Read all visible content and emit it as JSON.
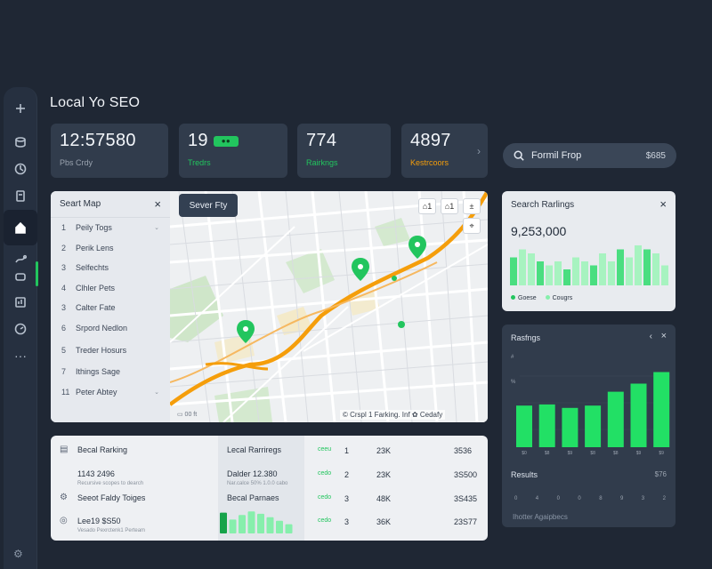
{
  "app": {
    "title": "Local Yo SEO"
  },
  "sidebar": {
    "items": [
      {
        "icon": "plus-icon"
      },
      {
        "icon": "database-icon"
      },
      {
        "icon": "compass-icon"
      },
      {
        "icon": "clipboard-icon"
      },
      {
        "icon": "home-icon",
        "active": true
      },
      {
        "icon": "route-icon"
      },
      {
        "icon": "chat-icon"
      },
      {
        "icon": "bar-chart-icon"
      },
      {
        "icon": "gauge-icon"
      },
      {
        "icon": "more-icon",
        "glyph": "···"
      }
    ]
  },
  "stats": [
    {
      "value": "12:57580",
      "label": "Pbs Crdy",
      "label_color": "#9aa3af"
    },
    {
      "value": "19",
      "badge": "●●",
      "label": "Tredrs",
      "label_color": "#22c55e"
    },
    {
      "value": "774",
      "label": "Rairkngs",
      "label_color": "#22c55e"
    },
    {
      "value": "4897",
      "label": "Kestrcoors",
      "label_color": "#f59e0b"
    }
  ],
  "search": {
    "label": "Formil Frop",
    "value": "$685"
  },
  "map_panel": {
    "title": "Seart Map",
    "items": [
      {
        "n": "1",
        "label": "Peily Togs"
      },
      {
        "n": "2",
        "label": "Perik Lens"
      },
      {
        "n": "3",
        "label": "Selfechts"
      },
      {
        "n": "4",
        "label": "Clhler Pets"
      },
      {
        "n": "3",
        "label": "Calter Fate"
      },
      {
        "n": "6",
        "label": "Srpord Nedlon"
      },
      {
        "n": "5",
        "label": "Treder Hosurs"
      },
      {
        "n": "7",
        "label": "Ithings Sage"
      },
      {
        "n": "11",
        "label": "Peter Abtey"
      }
    ],
    "server_button": "Sever Fty",
    "controls": [
      "⌂1",
      "⌂1",
      "±",
      "⌖"
    ],
    "attribution": "© Crspl 1 Farking. Inf ✿ Cedafy",
    "scale": "▭ 00 ft"
  },
  "table": {
    "rows": [
      {
        "icon": "doc-icon",
        "title": "Becal Rarking",
        "sub": "",
        "mid": "Lecal Rarriregs",
        "mid_sub": "",
        "tag": "ceeu",
        "num": "1",
        "a": "23K",
        "b": "3536"
      },
      {
        "icon": "",
        "title": "1143 2496",
        "sub": "Recursive scopes to dearch",
        "mid": "Dalder 12.380",
        "mid_sub": "Nar.calce 50% 1.0.0 cabo",
        "tag": "cedo",
        "num": "2",
        "a": "23K",
        "b": "3S500"
      },
      {
        "icon": "gear-icon",
        "title": "Seeot Faldy Toiges",
        "sub": "",
        "mid": "Becal Parnaes",
        "mid_sub": "",
        "tag": "cedo",
        "num": "3",
        "a": "48K",
        "b": "3S435"
      },
      {
        "icon": "pin-icon",
        "title": "Lee19 $S50",
        "sub": "Vesado Pexrctenk1 Perteam",
        "mid": "",
        "mid_sub": "",
        "tag": "cedo",
        "num": "3",
        "a": "36K",
        "b": "23S77"
      }
    ],
    "mini_bars": [
      0.9,
      0.6,
      0.8,
      0.95,
      0.85,
      0.7,
      0.55,
      0.4
    ]
  },
  "search_rankings": {
    "title": "Search Rarlings",
    "total": "9,253,000",
    "legend": [
      {
        "label": "Goese",
        "color": "#22c55e"
      },
      {
        "label": "Cougrs",
        "color": "#86efac"
      }
    ],
    "chart_data": {
      "type": "bar",
      "values": [
        0.35,
        0.45,
        0.4,
        0.3,
        0.25,
        0.3,
        0.2,
        0.35,
        0.3,
        0.25,
        0.4,
        0.3,
        0.45,
        0.35,
        0.5,
        0.45,
        0.4,
        0.25
      ]
    }
  },
  "rankings": {
    "title": "Rasfngs",
    "ytick_labels": [
      "#",
      "%"
    ],
    "chart_data": {
      "type": "bar",
      "categories": [
        "$0",
        "$8",
        "$9",
        "$8",
        "$8",
        "$9",
        "$9",
        "$9"
      ],
      "values": [
        36,
        37,
        34,
        36,
        48,
        55,
        65,
        78
      ]
    },
    "results_title": "Results",
    "results_value": "$76",
    "dots": [
      "0",
      "4",
      "0",
      "0",
      "8",
      "9",
      "3",
      "2"
    ],
    "footer": "Ihotter Agaipbecs"
  }
}
